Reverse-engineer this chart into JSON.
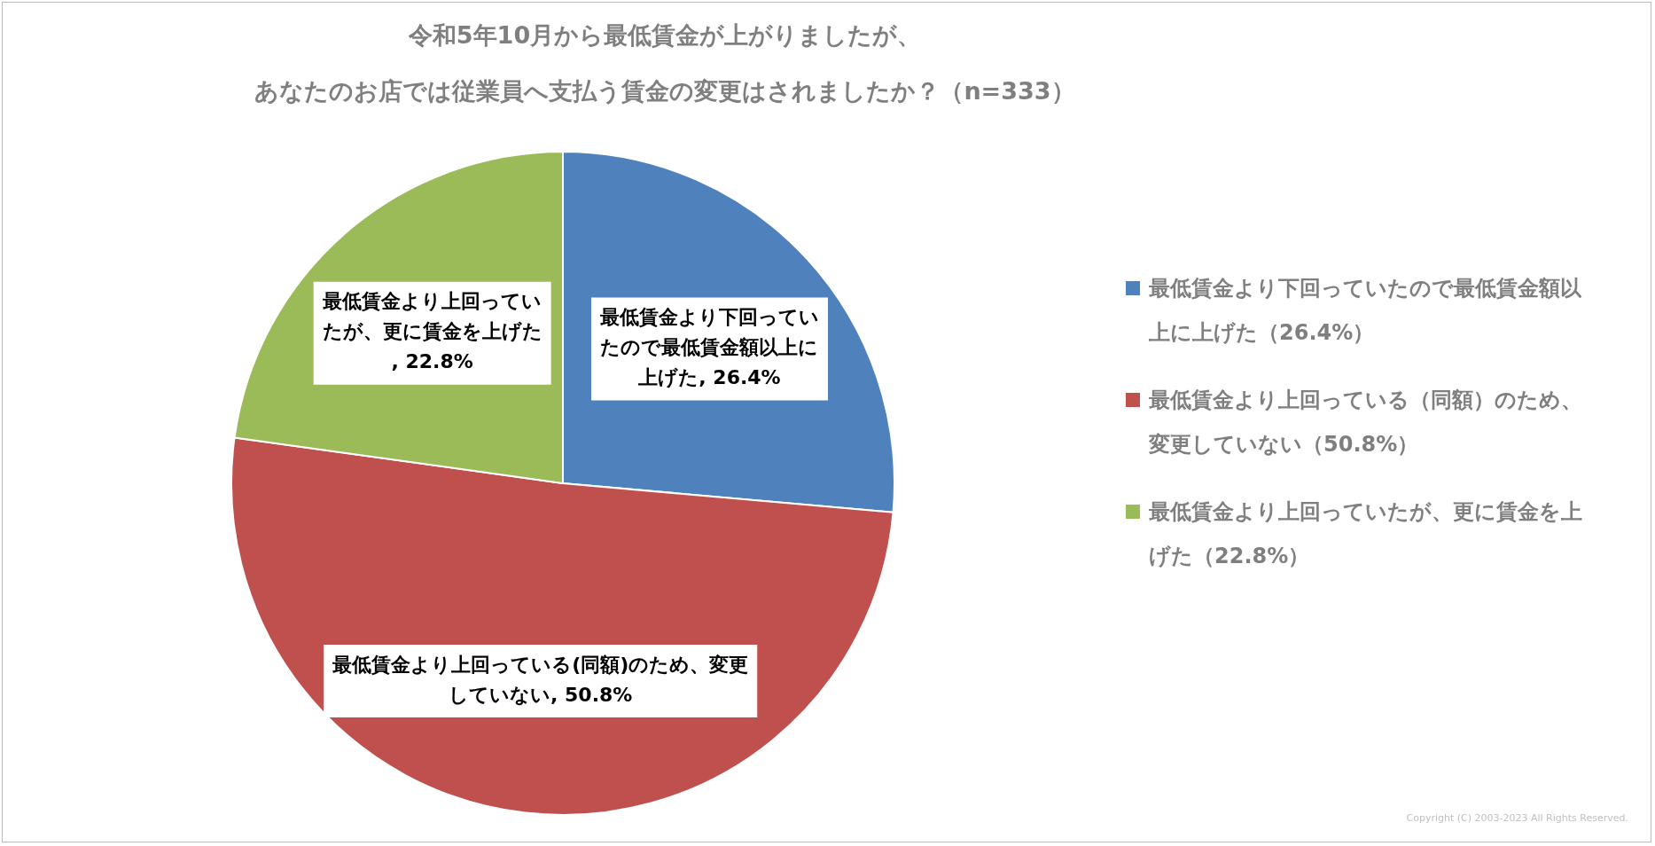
{
  "chart_data": {
    "type": "pie",
    "title": "令和5年10月から最低賃金が上がりましたが、",
    "subtitle": "あなたのお店では従業員へ支払う賃金の変更はされましたか？（n=333）",
    "categories": [
      "最低賃金より下回っていたので最低賃金額以上に上げた（26.4%）",
      "最低賃金より上回っている（同額）のため、変更していない（50.8%）",
      "最低賃金より上回っていたが、更に賃金を上げた（22.8%）"
    ],
    "values": [
      26.4,
      50.8,
      22.8
    ],
    "colors": [
      "#4f81bd",
      "#c0504d",
      "#9bbb59"
    ],
    "value_labels": [
      "最低賃金より下回っていたので最低賃金額以上に上げた, 26.4%",
      "最低賃金より上回っている(同額)のため、変更していない, 50.8%",
      "最低賃金より上回っていたが、更に賃金を上げた, 22.8%"
    ],
    "legend": "right",
    "annotations": [
      "Copyright (C) 2003-2023 All Rights Reserved."
    ]
  }
}
